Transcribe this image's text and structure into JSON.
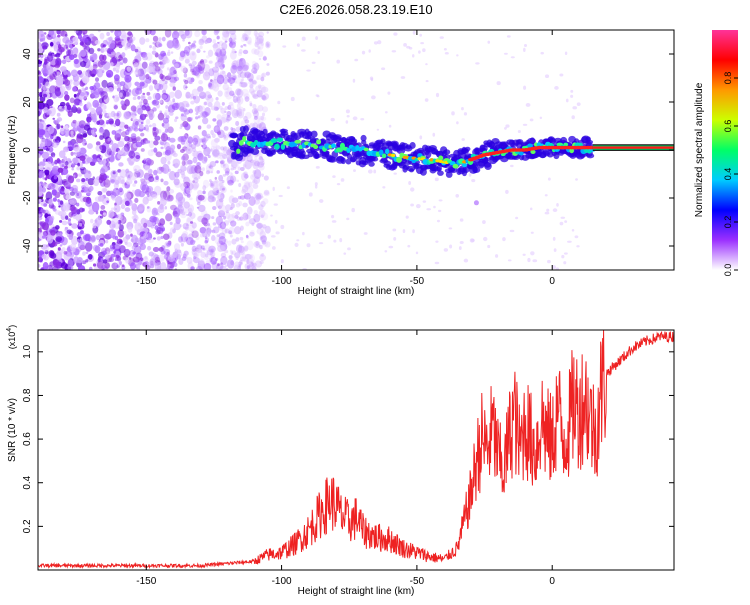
{
  "title": "C2E6.2026.058.23.19.E10",
  "chart_data": [
    {
      "type": "heatmap",
      "title": "C2E6.2026.058.23.19.E10",
      "xlabel": "Height of straight line (km)",
      "ylabel": "Frequency (Hz)",
      "xlim": [
        -190,
        45
      ],
      "ylim": [
        -50,
        50
      ],
      "xticks": [
        -150,
        -100,
        -50,
        0
      ],
      "yticks": [
        -40,
        -20,
        0,
        20,
        40
      ],
      "colorbar": {
        "label": "Normalized spectral amplitude",
        "range": [
          0.0,
          1.0
        ],
        "ticks": [
          0.0,
          0.2,
          0.4,
          0.6,
          0.8
        ],
        "colors": [
          "#ffffff",
          "#9b30ff",
          "#0000ff",
          "#00ccff",
          "#00ff66",
          "#ccff00",
          "#ff9900",
          "#ff0000",
          "#ff3399"
        ]
      },
      "signal_track": {
        "description": "Frequency centre of the coherent signal vs height",
        "x": [
          -115,
          -105,
          -95,
          -85,
          -75,
          -65,
          -55,
          -45,
          -40,
          -35,
          -30,
          -25,
          -20,
          -15,
          -10,
          -5,
          0,
          5,
          10,
          15,
          45
        ],
        "y": [
          4,
          3,
          2.5,
          2,
          0,
          -1,
          -3,
          -4,
          -5,
          -6,
          -4,
          -2,
          -1,
          0,
          0,
          1,
          1,
          1,
          1,
          1,
          1
        ]
      }
    },
    {
      "type": "line",
      "xlabel": "Height of straight line (km)",
      "ylabel": "SNR (10 * v/v)",
      "y_multiplier": "(x10^4)",
      "y_multiplier_base": "(x10",
      "y_multiplier_exp": "4",
      "y_multiplier_close": ")",
      "xlim": [
        -190,
        45
      ],
      "ylim": [
        0,
        1.1
      ],
      "xticks": [
        -150,
        -100,
        -50,
        0
      ],
      "yticks": [
        0.2,
        0.4,
        0.6,
        0.8,
        1.0
      ],
      "color": "#ee2222",
      "series": [
        {
          "name": "SNR",
          "x": [
            -190,
            -180,
            -170,
            -160,
            -150,
            -140,
            -130,
            -120,
            -110,
            -105,
            -100,
            -95,
            -90,
            -85,
            -82,
            -80,
            -78,
            -75,
            -72,
            -70,
            -65,
            -60,
            -55,
            -50,
            -45,
            -40,
            -35,
            -32,
            -30,
            -28,
            -26,
            -24,
            -22,
            -20,
            -18,
            -16,
            -14,
            -12,
            -10,
            -8,
            -6,
            -4,
            -2,
            0,
            2,
            4,
            6,
            8,
            10,
            12,
            14,
            16,
            18,
            20,
            25,
            30,
            35,
            40,
            45
          ],
          "y": [
            0.02,
            0.02,
            0.02,
            0.02,
            0.02,
            0.02,
            0.02,
            0.03,
            0.04,
            0.07,
            0.08,
            0.12,
            0.18,
            0.27,
            0.32,
            0.3,
            0.25,
            0.22,
            0.24,
            0.18,
            0.15,
            0.14,
            0.1,
            0.08,
            0.06,
            0.05,
            0.1,
            0.25,
            0.35,
            0.5,
            0.6,
            0.55,
            0.65,
            0.52,
            0.45,
            0.6,
            0.72,
            0.55,
            0.68,
            0.6,
            0.55,
            0.7,
            0.62,
            0.58,
            0.75,
            0.6,
            0.65,
            0.78,
            0.72,
            0.8,
            0.7,
            0.62,
            0.82,
            0.9,
            0.96,
            1.02,
            1.05,
            1.07,
            1.07
          ]
        }
      ]
    }
  ]
}
